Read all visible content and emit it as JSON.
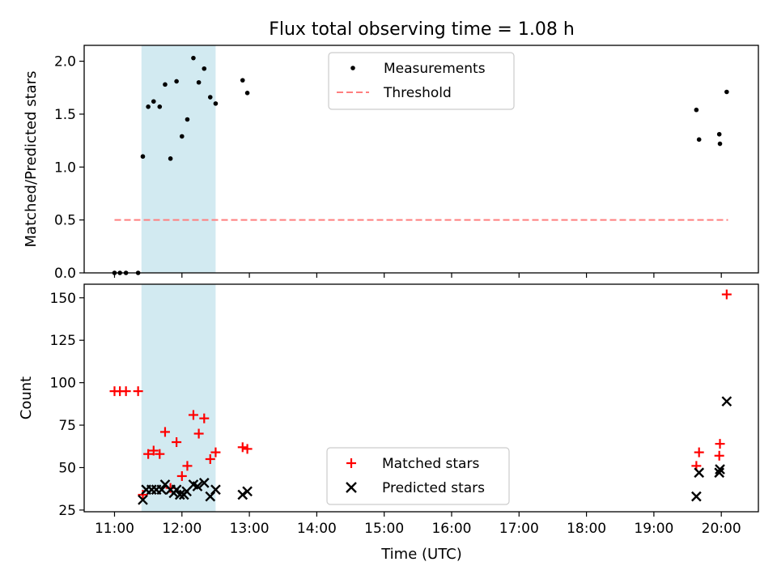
{
  "chart_data": {
    "title": "Flux total observing time = 1.08 h",
    "highlight_span_hours": [
      11.4,
      12.5
    ],
    "highlight_color": "#add8e6",
    "panels": [
      {
        "type": "scatter",
        "ylabel": "Matched/Predicted stars",
        "xlim_hours": [
          10.55,
          20.55
        ],
        "ylim": [
          0,
          2.15
        ],
        "yticks": [
          "0.0",
          "0.5",
          "1.0",
          "1.5",
          "2.0"
        ],
        "ytick_values": [
          0,
          0.5,
          1.0,
          1.5,
          2.0
        ],
        "legend_position": "upper-center",
        "series": [
          {
            "name": "Measurements",
            "marker": "dot",
            "color": "#000000",
            "x_hours": [
              11.0,
              11.08,
              11.17,
              11.35,
              11.42,
              11.5,
              11.58,
              11.67,
              11.75,
              11.83,
              11.92,
              12.0,
              12.08,
              12.17,
              12.25,
              12.33,
              12.42,
              12.5,
              12.9,
              12.97,
              19.63,
              19.67,
              19.97,
              19.98,
              20.08
            ],
            "y": [
              0.0,
              0.0,
              0.0,
              0.0,
              1.1,
              1.57,
              1.62,
              1.57,
              1.78,
              1.08,
              1.81,
              1.29,
              1.45,
              2.03,
              1.8,
              1.93,
              1.66,
              1.6,
              1.82,
              1.7,
              1.54,
              1.26,
              1.31,
              1.22,
              1.71
            ]
          },
          {
            "name": "Threshold",
            "marker": "dashed-line",
            "color": "#ff7f7f",
            "x_hours": [
              11.0,
              20.1
            ],
            "y": [
              0.5,
              0.5
            ]
          }
        ]
      },
      {
        "type": "scatter",
        "ylabel": "Count",
        "xlabel": "Time (UTC)",
        "xlim_hours": [
          10.55,
          20.55
        ],
        "ylim": [
          24,
          158
        ],
        "yticks": [
          "25",
          "50",
          "75",
          "100",
          "125",
          "150"
        ],
        "ytick_values": [
          25,
          50,
          75,
          100,
          125,
          150
        ],
        "xticks": [
          "11:00",
          "12:00",
          "13:00",
          "14:00",
          "15:00",
          "16:00",
          "17:00",
          "18:00",
          "19:00",
          "20:00"
        ],
        "xtick_values_hours": [
          11,
          12,
          13,
          14,
          15,
          16,
          17,
          18,
          19,
          20
        ],
        "legend_position": "lower-center",
        "series": [
          {
            "name": "Matched stars",
            "marker": "plus",
            "color": "#ff0000",
            "x_hours": [
              11.0,
              11.08,
              11.17,
              11.35,
              11.42,
              11.5,
              11.58,
              11.67,
              11.75,
              11.83,
              11.92,
              12.0,
              12.08,
              12.17,
              12.25,
              12.33,
              12.42,
              12.5,
              12.9,
              12.97,
              19.63,
              19.67,
              19.97,
              19.98,
              20.08
            ],
            "y": [
              95,
              95,
              95,
              95,
              34,
              58,
              60,
              58,
              71,
              38,
              65,
              45,
              51,
              81,
              70,
              79,
              55,
              59,
              62,
              61,
              51,
              59,
              57,
              64,
              152
            ]
          },
          {
            "name": "Predicted stars",
            "marker": "x",
            "color": "#000000",
            "x_hours": [
              11.42,
              11.47,
              11.55,
              11.62,
              11.7,
              11.75,
              11.83,
              11.88,
              11.92,
              11.97,
              12.03,
              12.07,
              12.17,
              12.23,
              12.33,
              12.42,
              12.5,
              12.9,
              12.97,
              19.63,
              19.67,
              19.97,
              19.98,
              20.08
            ],
            "y": [
              31,
              37,
              37,
              37,
              37,
              40,
              37,
              35,
              37,
              34,
              34,
              36,
              40,
              39,
              41,
              33,
              37,
              34,
              36,
              33,
              47,
              47,
              49,
              89
            ]
          }
        ]
      }
    ]
  }
}
